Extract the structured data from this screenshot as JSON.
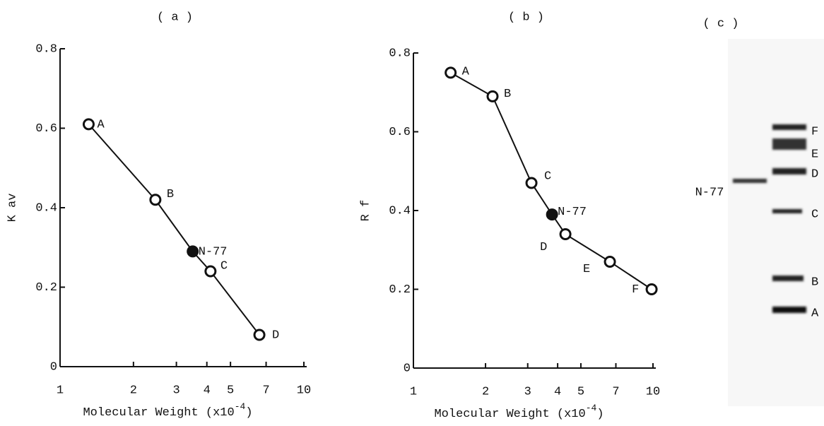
{
  "chart_data": [
    {
      "type": "line",
      "title": "( a )",
      "xlabel": "Molecular Weight (x10",
      "xlabel_exp": "-4",
      "xlabel_end": ")",
      "ylabel": "K av",
      "log_x": true,
      "x": [
        1.31,
        2.46,
        3.5,
        4.14,
        6.57
      ],
      "series": [
        {
          "color": "#111",
          "values": [
            0.61,
            0.42,
            0.29,
            0.24,
            0.08
          ]
        }
      ],
      "point_labels": [
        "A",
        "B",
        "N-77",
        "C",
        "D"
      ],
      "filled": [
        false,
        false,
        true,
        false,
        false
      ],
      "xlim": [
        1,
        10
      ],
      "xticks": [
        1,
        2,
        3,
        4,
        5,
        7,
        10
      ],
      "ylim": [
        0,
        0.8
      ],
      "yticks": [
        0,
        0.2,
        0.4,
        0.6,
        0.8
      ]
    },
    {
      "type": "line",
      "title": "( b )",
      "xlabel": "Molecular Weight (x10",
      "xlabel_exp": "-4",
      "xlabel_end": ")",
      "ylabel": "R f",
      "log_x": true,
      "x": [
        1.43,
        2.14,
        3.11,
        3.79,
        4.31,
        6.61,
        9.87
      ],
      "series": [
        {
          "color": "#111",
          "values": [
            0.75,
            0.69,
            0.47,
            0.39,
            0.34,
            0.27,
            0.2
          ]
        }
      ],
      "point_labels": [
        "A",
        "B",
        "C",
        "N-77",
        "D",
        "E",
        "F"
      ],
      "filled": [
        false,
        false,
        false,
        true,
        false,
        false,
        false
      ],
      "xlim": [
        1,
        10
      ],
      "xticks": [
        1,
        2,
        3,
        4,
        5,
        7,
        10
      ],
      "ylim": [
        0,
        0.8
      ],
      "yticks": [
        0,
        0.2,
        0.4,
        0.6,
        0.8
      ]
    }
  ],
  "gel": {
    "title": "( c )",
    "sample_label": "N-77",
    "marker_labels": [
      "F",
      "E",
      "D",
      "C",
      "B",
      "A"
    ]
  }
}
